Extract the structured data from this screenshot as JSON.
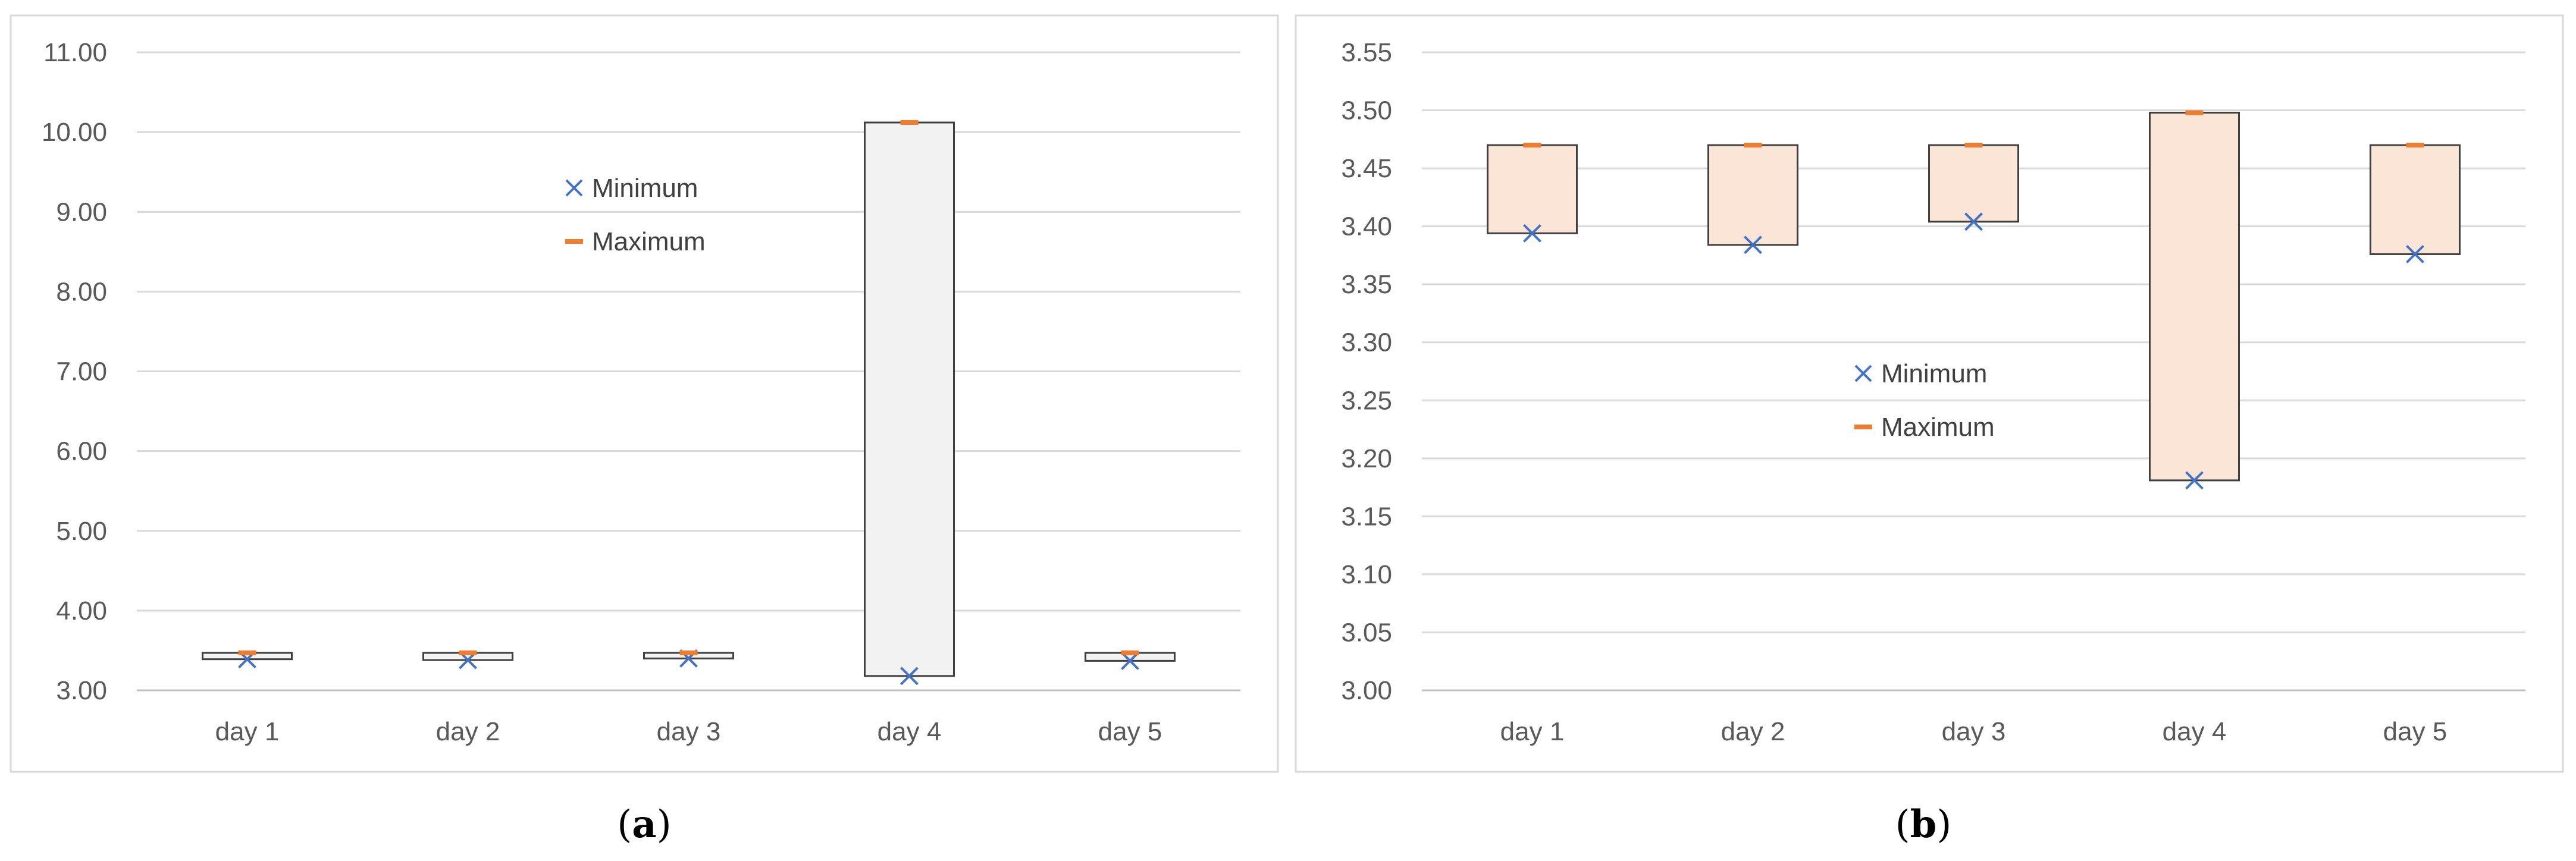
{
  "chart_data": [
    {
      "panel_label": "a",
      "type": "box",
      "categories": [
        "day 1",
        "day 2",
        "day 3",
        "day 4",
        "day 5"
      ],
      "ylim": [
        3.0,
        11.0
      ],
      "ytick_step": 1.0,
      "ytick_decimals": 2,
      "grid": true,
      "legend": {
        "placement": "top-center",
        "entries": [
          "Minimum",
          "Maximum"
        ]
      },
      "box_fill": "#f2f2f2",
      "series": [
        {
          "name": "Minimum",
          "marker": "x",
          "color": "#4472c4",
          "values": [
            3.39,
            3.38,
            3.4,
            3.18,
            3.37
          ]
        },
        {
          "name": "Maximum",
          "marker": "dash",
          "color": "#ed7d31",
          "values": [
            3.47,
            3.47,
            3.47,
            10.12,
            3.47
          ]
        }
      ]
    },
    {
      "panel_label": "b",
      "type": "box",
      "categories": [
        "day 1",
        "day 2",
        "day 3",
        "day 4",
        "day 5"
      ],
      "ylim": [
        3.0,
        3.55
      ],
      "ytick_step": 0.05,
      "ytick_decimals": 2,
      "grid": true,
      "legend": {
        "placement": "center",
        "entries": [
          "Minimum",
          "Maximum"
        ]
      },
      "box_fill": "#fbe5d6",
      "series": [
        {
          "name": "Minimum",
          "marker": "x",
          "color": "#4472c4",
          "values": [
            3.394,
            3.384,
            3.404,
            3.181,
            3.376
          ]
        },
        {
          "name": "Maximum",
          "marker": "dash",
          "color": "#ed7d31",
          "values": [
            3.47,
            3.47,
            3.47,
            3.498,
            3.47
          ]
        }
      ]
    }
  ]
}
